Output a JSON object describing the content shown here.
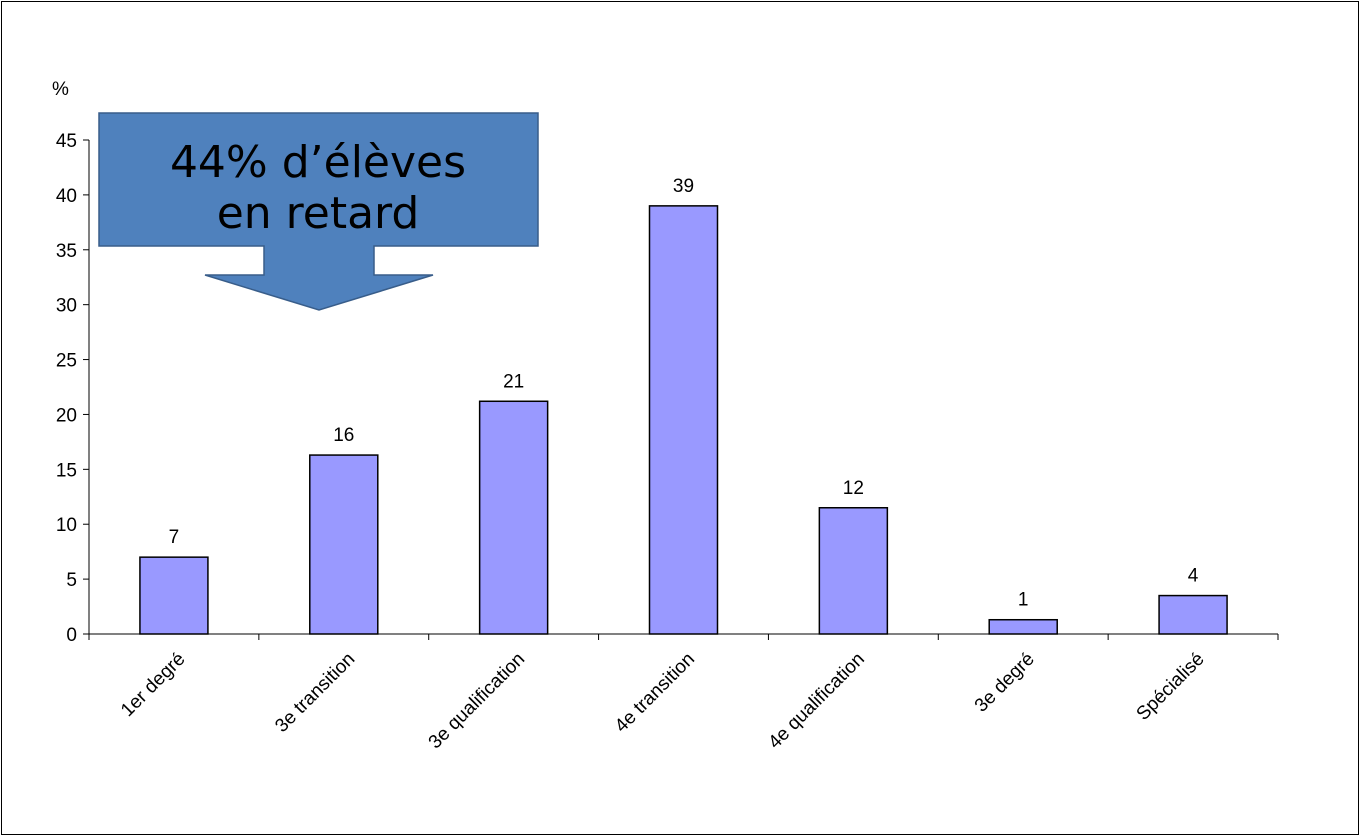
{
  "chart_data": {
    "type": "bar",
    "categories": [
      "1er degré",
      "3e transition",
      "3e qualification",
      "4e transition",
      "4e qualification",
      "3e degré",
      "Spécialisé"
    ],
    "values": [
      7,
      16.3,
      21.2,
      39,
      11.5,
      1.3,
      3.5
    ],
    "data_labels": [
      "7",
      "16",
      "21",
      "39",
      "12",
      "1",
      "4"
    ],
    "ylabel": "%",
    "ylim": [
      0,
      45
    ],
    "yticks": [
      0,
      5,
      10,
      15,
      20,
      25,
      30,
      35,
      40,
      45
    ],
    "grid": false,
    "legend": "none",
    "bar_color": "#9999ff",
    "bar_border_color": "#000000",
    "annotation": {
      "lines": [
        "44% d’élèves",
        "en retard"
      ],
      "shape": "down-arrow callout",
      "fill_color": "#4f81bd",
      "border_color": "#385d8a"
    }
  }
}
